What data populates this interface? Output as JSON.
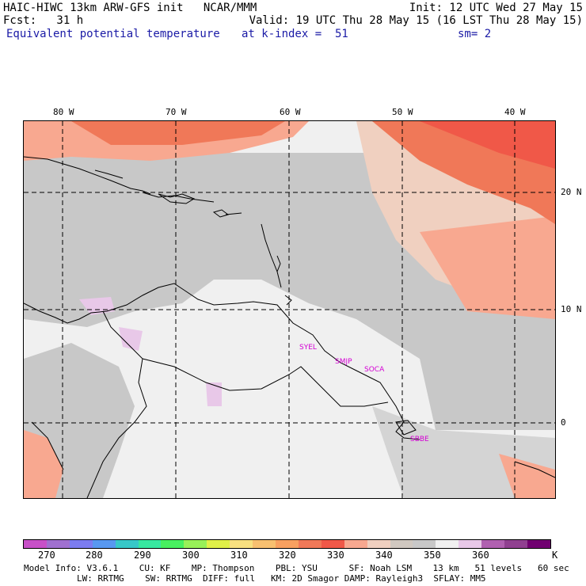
{
  "header": {
    "line1_left": "HAIC-HIWC 13km ARW-GFS init   NCAR/MMM",
    "line1_right": "Init: 12 UTC Wed 27 May 15",
    "line2_left": "Fcst:   31 h",
    "line2_right": "Valid: 19 UTC Thu 28 May 15 (16 LST Thu 28 May 15)",
    "line3_left": "Equivalent potential temperature",
    "line3_mid": "at k-index =  51",
    "line3_right": "sm= 2"
  },
  "map": {
    "lon_labels": [
      "80 W",
      "70 W",
      "60 W",
      "50 W",
      "40 W"
    ],
    "lat_labels": [
      "20 N",
      "10 N",
      "0"
    ],
    "sites": [
      "SYEL",
      "SMJP",
      "SOCA",
      "SBBE"
    ]
  },
  "colorbar": {
    "colors": [
      "#c850c8",
      "#a070d0",
      "#7c7cf0",
      "#5898f0",
      "#38c8c8",
      "#38e8a0",
      "#48f060",
      "#98f058",
      "#e0f048",
      "#f8e080",
      "#f8c070",
      "#f8a060",
      "#f07858",
      "#f05848",
      "#f8a890",
      "#f0d0c0",
      "#d0c8c0",
      "#c8c8c8",
      "#f0f0f0",
      "#e8c8e8",
      "#b060b0",
      "#904090",
      "#700070"
    ],
    "labels": [
      "270",
      "280",
      "290",
      "300",
      "310",
      "320",
      "330",
      "340",
      "350",
      "360",
      "K"
    ]
  },
  "footer": {
    "line1": "Model Info: V3.6.1    CU: KF    MP: Thompson    PBL: YSU      SF: Noah LSM    13 km   51 levels   60 sec",
    "line2": "LW: RRTMG    SW: RRTMG  DIFF: full   KM: 2D Smagor DAMP: Rayleigh3  SFLAY: MM5"
  }
}
